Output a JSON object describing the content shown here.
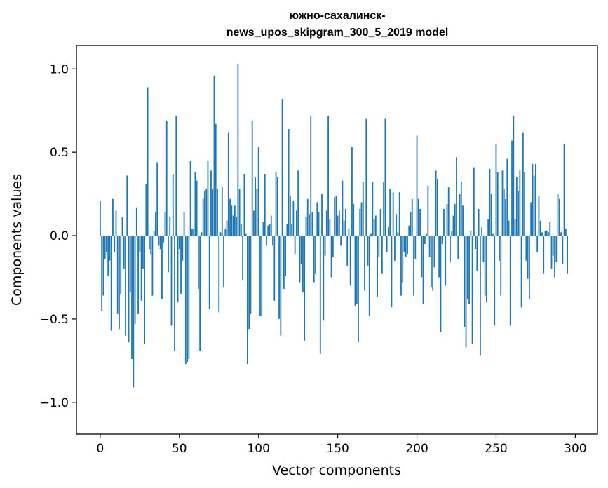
{
  "chart_data": {
    "type": "bar",
    "title_lines": [
      "южно-сахалинск-",
      "news_upos_skipgram_300_5_2019 model"
    ],
    "xlabel": "Vector components",
    "ylabel": "Components values",
    "xlim": [
      -15,
      314
    ],
    "ylim": [
      -1.19,
      1.14
    ],
    "xticks": [
      0,
      50,
      100,
      150,
      200,
      250,
      300
    ],
    "xtick_labels": [
      "0",
      "50",
      "100",
      "150",
      "200",
      "250",
      "300"
    ],
    "yticks": [
      -1.0,
      -0.5,
      0.0,
      0.5,
      1.0
    ],
    "ytick_labels": [
      "−1.0",
      "−0.5",
      "0.0",
      "0.5",
      "1.0"
    ],
    "grid": false,
    "bar_color": "#1f77b4",
    "values": [
      0.21,
      -0.45,
      -0.36,
      -0.14,
      -0.1,
      -0.24,
      -0.15,
      -0.57,
      0.22,
      -0.1,
      0.15,
      -0.47,
      -0.56,
      -0.35,
      0.11,
      -0.2,
      -0.6,
      0.36,
      -0.64,
      -0.34,
      -0.74,
      -0.91,
      -0.53,
      0.17,
      -0.47,
      -0.1,
      -0.39,
      -0.2,
      -0.65,
      0.31,
      0.89,
      -0.08,
      -0.11,
      -0.36,
      0.03,
      0.14,
      0.44,
      -0.06,
      -0.08,
      -0.38,
      -0.04,
      0.14,
      0.69,
      -0.22,
      0.11,
      -0.54,
      0.37,
      -0.69,
      0.72,
      -0.4,
      -0.08,
      -0.35,
      -0.15,
      0.14,
      -0.77,
      -0.76,
      -0.74,
      0.45,
      0.04,
      0.04,
      0.38,
      0.33,
      -0.32,
      -0.69,
      0.02,
      0.22,
      0.27,
      0.28,
      0.45,
      -0.44,
      0.39,
      0.28,
      0.96,
      0.67,
      0.28,
      -0.46,
      0.02,
      0.29,
      -0.31,
      0.04,
      0.09,
      0.62,
      0.22,
      0.18,
      0.12,
      0.18,
      0.11,
      1.03,
      0.28,
      0.07,
      -0.27,
      0.37,
      0.01,
      -0.77,
      -0.56,
      -0.47,
      0.69,
      0.15,
      0.35,
      0.28,
      0.53,
      -0.48,
      -0.48,
      0.08,
      0.37,
      -0.06,
      0.06,
      0.07,
      0.12,
      -0.06,
      -0.39,
      0.38,
      0.35,
      -0.5,
      -0.6,
      0.82,
      -0.32,
      -0.24,
      0.07,
      0.64,
      0.24,
      0.07,
      0.21,
      -0.11,
      0.15,
      0.39,
      -0.28,
      -0.17,
      -0.34,
      -0.63,
      0.11,
      0.22,
      0.13,
      0.72,
      0.14,
      -0.28,
      -0.23,
      0.2,
      0.14,
      -0.71,
      0.25,
      -0.51,
      -0.12,
      0.15,
      0.72,
      0.1,
      -0.25,
      -0.13,
      0.23,
      0.24,
      0.12,
      0.15,
      -0.06,
      0.33,
      0.09,
      0.16,
      -0.18,
      0.04,
      -0.3,
      0.53,
      0.19,
      -0.42,
      -0.41,
      -0.64,
      0.16,
      0.2,
      0.32,
      -0.33,
      0.7,
      -0.18,
      -0.48,
      0.01,
      0.32,
      0.1,
      0.12,
      -0.37,
      -0.13,
      0.16,
      -0.23,
      0.32,
      0.7,
      -0.1,
      0.05,
      0.28,
      -0.43,
      0.26,
      -0.15,
      0.13,
      0.02,
      0.26,
      -0.36,
      -0.28,
      -0.1,
      -0.13,
      -0.11,
      0.06,
      0.14,
      0.22,
      -0.36,
      -0.14,
      0.6,
      0.22,
      0.16,
      -0.25,
      -0.41,
      -0.05,
      0.01,
      0.3,
      -0.13,
      -0.31,
      -0.33,
      -0.19,
      0.39,
      0.34,
      -0.25,
      -0.58,
      -0.05,
      0.16,
      -0.3,
      0.19,
      0.29,
      -0.16,
      0.03,
      0.12,
      0.19,
      0.47,
      -0.14,
      0.25,
      0.32,
      0.18,
      -0.55,
      -0.67,
      -0.38,
      -0.41,
      0.03,
      -0.65,
      0.41,
      -0.08,
      -0.21,
      0.16,
      -0.72,
      0.05,
      -0.16,
      -0.36,
      -0.4,
      0.1,
      0.4,
      0.25,
      0.01,
      -0.54,
      0.55,
      0.38,
      -0.15,
      -0.36,
      0.39,
      0.28,
      0.22,
      0.46,
      0.09,
      -0.54,
      0.57,
      0.72,
      0.1,
      0.35,
      0.27,
      0.39,
      -0.43,
      0.62,
      0.38,
      -0.15,
      -0.26,
      -0.38,
      0.2,
      0.43,
      0.36,
      0.43,
      -0.1,
      0.24,
      0.09,
      0.02,
      -0.23,
      0.03,
      0.03,
      0.02,
      0.08,
      -0.2,
      -0.12,
      -0.25,
      -0.16,
      0.25,
      0.22,
      0.02,
      -0.17,
      0.55,
      0.04,
      -0.23
    ]
  }
}
